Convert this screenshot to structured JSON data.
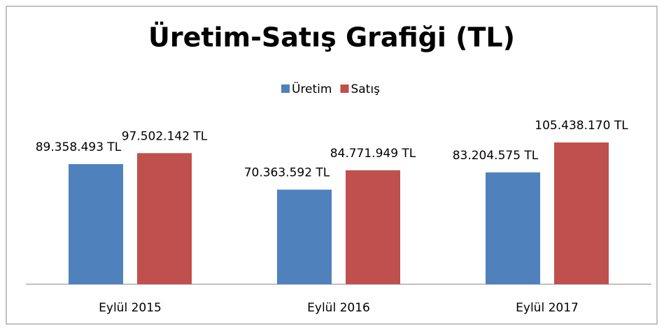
{
  "chart_data": {
    "type": "bar",
    "title": "Üretim-Satış Grafiği (TL)",
    "categories": [
      "Eylül 2015",
      "Eylül 2016",
      "Eylül 2017"
    ],
    "series": [
      {
        "name": "Üretim",
        "color": "#4f81bd",
        "values": [
          89358493,
          70363592,
          83204575
        ],
        "value_labels": [
          "89.358.493 TL",
          "70.363.592 TL",
          "83.204.575 TL"
        ]
      },
      {
        "name": "Satış",
        "color": "#c0504d",
        "values": [
          97502142,
          84771949,
          105438170
        ],
        "value_labels": [
          "97.502.142 TL",
          "84.771.949 TL",
          "105.438.170 TL"
        ]
      }
    ],
    "ylim": [
      0,
      120000000
    ],
    "legend": "top"
  }
}
